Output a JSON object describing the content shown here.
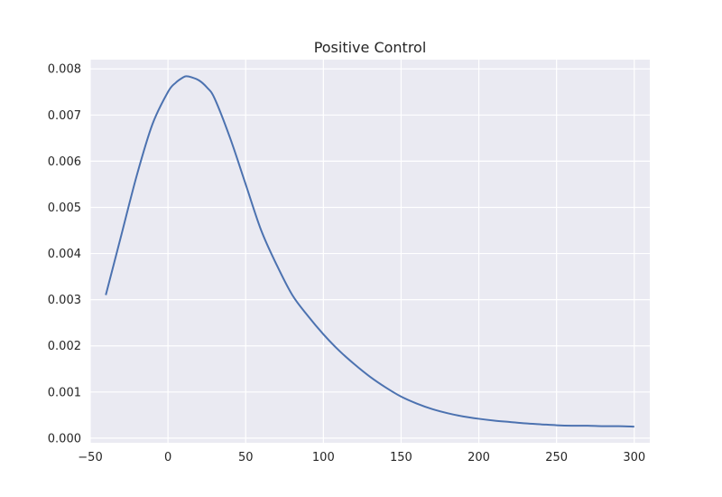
{
  "chart_data": {
    "type": "line",
    "title": "Positive Control",
    "xlabel": "",
    "ylabel": "",
    "xlim": [
      -50,
      310
    ],
    "ylim": [
      -0.0001,
      0.0082
    ],
    "xticks": [
      -50,
      0,
      50,
      100,
      150,
      200,
      250,
      300
    ],
    "xtick_labels": [
      "−50",
      "0",
      "50",
      "100",
      "150",
      "200",
      "250",
      "300"
    ],
    "yticks": [
      0,
      0.001,
      0.002,
      0.003,
      0.004,
      0.005,
      0.006,
      0.007,
      0.008
    ],
    "ytick_labels": [
      "0.000",
      "0.001",
      "0.002",
      "0.003",
      "0.004",
      "0.005",
      "0.006",
      "0.007",
      "0.008"
    ],
    "grid": true,
    "series": [
      {
        "color": "#4c72b0",
        "x": [
          -40,
          -30,
          -20,
          -10,
          0,
          5,
          10,
          12,
          15,
          20,
          25,
          30,
          40,
          50,
          60,
          70,
          80,
          90,
          100,
          110,
          120,
          130,
          140,
          150,
          160,
          170,
          180,
          190,
          200,
          210,
          220,
          230,
          240,
          250,
          260,
          270,
          280,
          290,
          300
        ],
        "y": [
          0.0031,
          0.0044,
          0.0057,
          0.0068,
          0.0075,
          0.0077,
          0.00782,
          0.00784,
          0.00782,
          0.00775,
          0.0076,
          0.00736,
          0.0065,
          0.0055,
          0.0045,
          0.00375,
          0.0031,
          0.00265,
          0.00225,
          0.0019,
          0.0016,
          0.00133,
          0.0011,
          0.0009,
          0.00075,
          0.00063,
          0.00054,
          0.00047,
          0.00042,
          0.00038,
          0.00035,
          0.00032,
          0.0003,
          0.00028,
          0.00027,
          0.00027,
          0.00026,
          0.00026,
          0.00025
        ]
      }
    ]
  }
}
